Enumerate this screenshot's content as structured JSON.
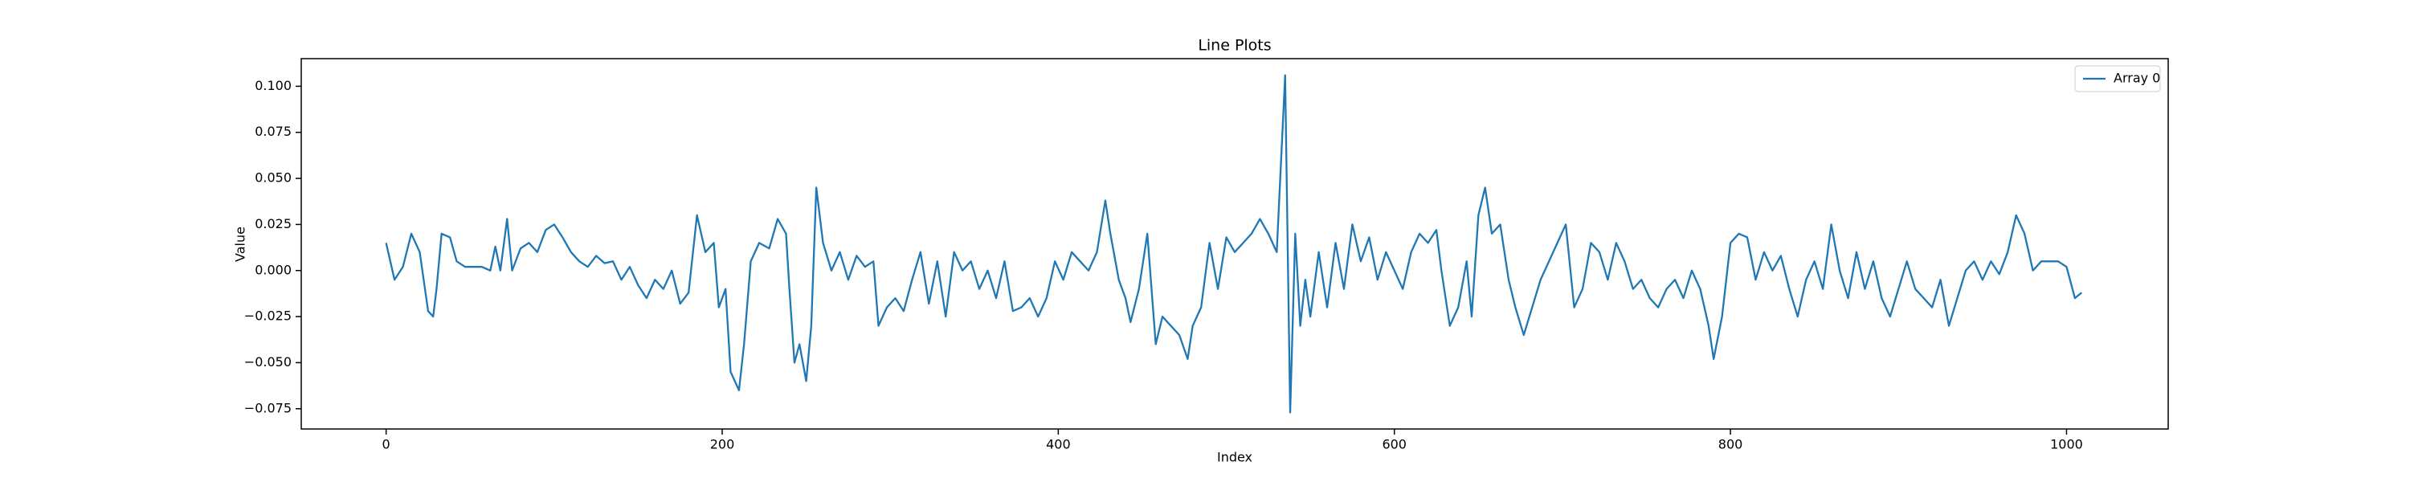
{
  "chart_data": {
    "type": "line",
    "title": "Line Plots",
    "xlabel": "Index",
    "ylabel": "Value",
    "x": [
      0,
      5,
      10,
      15,
      20,
      25,
      28,
      30,
      33,
      38,
      42,
      47,
      52,
      57,
      62,
      65,
      68,
      72,
      75,
      80,
      85,
      90,
      95,
      100,
      105,
      110,
      115,
      120,
      125,
      130,
      135,
      140,
      145,
      150,
      155,
      160,
      165,
      170,
      175,
      180,
      185,
      190,
      195,
      198,
      202,
      205,
      210,
      213,
      217,
      222,
      228,
      233,
      238,
      240,
      243,
      246,
      250,
      253,
      256,
      260,
      265,
      270,
      275,
      280,
      285,
      290,
      293,
      298,
      303,
      308,
      313,
      318,
      323,
      328,
      333,
      338,
      343,
      348,
      353,
      358,
      363,
      368,
      373,
      378,
      383,
      388,
      393,
      398,
      403,
      408,
      413,
      418,
      423,
      428,
      431,
      436,
      440,
      443,
      448,
      453,
      458,
      462,
      467,
      472,
      477,
      480,
      485,
      490,
      495,
      500,
      505,
      510,
      515,
      520,
      525,
      530,
      535,
      538,
      541,
      544,
      547,
      550,
      555,
      560,
      565,
      570,
      575,
      580,
      585,
      590,
      595,
      600,
      605,
      610,
      615,
      620,
      625,
      628,
      633,
      638,
      643,
      646,
      650,
      654,
      658,
      663,
      668,
      672,
      677,
      682,
      687,
      692,
      697,
      702,
      707,
      712,
      717,
      722,
      727,
      732,
      737,
      742,
      747,
      752,
      757,
      762,
      767,
      772,
      777,
      782,
      787,
      790,
      795,
      800,
      805,
      810,
      815,
      820,
      825,
      830,
      835,
      840,
      845,
      850,
      855,
      860,
      865,
      870,
      875,
      880,
      885,
      890,
      895,
      900,
      905,
      910,
      915,
      920,
      925,
      930,
      935,
      940,
      945,
      950,
      955,
      960,
      965,
      970,
      975,
      980,
      985,
      990,
      995,
      1000,
      1005,
      1009
    ],
    "series": [
      {
        "name": "Array 0",
        "color": "#1f77b4",
        "values": [
          0.015,
          -0.005,
          0.002,
          0.02,
          0.01,
          -0.022,
          -0.025,
          -0.01,
          0.02,
          0.018,
          0.005,
          0.002,
          0.002,
          0.002,
          0.0,
          0.013,
          0.0,
          0.028,
          0.0,
          0.012,
          0.015,
          0.01,
          0.022,
          0.025,
          0.018,
          0.01,
          0.005,
          0.002,
          0.008,
          0.004,
          0.005,
          -0.005,
          0.002,
          -0.008,
          -0.015,
          -0.005,
          -0.01,
          0.0,
          -0.018,
          -0.012,
          0.03,
          0.01,
          0.015,
          -0.02,
          -0.01,
          -0.055,
          -0.065,
          -0.04,
          0.005,
          0.015,
          0.012,
          0.028,
          0.02,
          -0.01,
          -0.05,
          -0.04,
          -0.06,
          -0.03,
          0.045,
          0.015,
          0.0,
          0.01,
          -0.005,
          0.008,
          0.002,
          0.005,
          -0.03,
          -0.02,
          -0.015,
          -0.022,
          -0.005,
          0.01,
          -0.018,
          0.005,
          -0.025,
          0.01,
          0.0,
          0.005,
          -0.01,
          0.0,
          -0.015,
          0.005,
          -0.022,
          -0.02,
          -0.015,
          -0.025,
          -0.015,
          0.005,
          -0.005,
          0.01,
          0.005,
          0.0,
          0.01,
          0.038,
          0.02,
          -0.005,
          -0.015,
          -0.028,
          -0.01,
          0.02,
          -0.04,
          -0.025,
          -0.03,
          -0.035,
          -0.048,
          -0.03,
          -0.02,
          0.015,
          -0.01,
          0.018,
          0.01,
          0.015,
          0.02,
          0.028,
          0.02,
          0.01,
          0.106,
          -0.077,
          0.02,
          -0.03,
          -0.005,
          -0.025,
          0.01,
          -0.02,
          0.015,
          -0.01,
          0.025,
          0.005,
          0.018,
          -0.005,
          0.01,
          0.0,
          -0.01,
          0.01,
          0.02,
          0.015,
          0.022,
          0.0,
          -0.03,
          -0.02,
          0.005,
          -0.025,
          0.03,
          0.045,
          0.02,
          0.025,
          -0.005,
          -0.02,
          -0.035,
          -0.02,
          -0.005,
          0.005,
          0.015,
          0.025,
          -0.02,
          -0.01,
          0.015,
          0.01,
          -0.005,
          0.015,
          0.005,
          -0.01,
          -0.005,
          -0.015,
          -0.02,
          -0.01,
          -0.005,
          -0.015,
          0.0,
          -0.01,
          -0.03,
          -0.048,
          -0.025,
          0.015,
          0.02,
          0.018,
          -0.005,
          0.01,
          0.0,
          0.008,
          -0.01,
          -0.025,
          -0.005,
          0.005,
          -0.01,
          0.025,
          0.0,
          -0.015,
          0.01,
          -0.01,
          0.005,
          -0.015,
          -0.025,
          -0.01,
          0.005,
          -0.01,
          -0.015,
          -0.02,
          -0.005,
          -0.03,
          -0.015,
          0.0,
          0.005,
          -0.005,
          0.005,
          -0.002,
          0.01,
          0.03,
          0.02,
          0.0,
          0.005,
          0.005,
          0.005,
          0.002,
          -0.015,
          -0.012
        ]
      }
    ],
    "xlim": [
      -50.5,
      1060.5
    ],
    "ylim": [
      -0.086,
      0.115
    ],
    "xticks": [
      0,
      200,
      400,
      600,
      800,
      1000
    ],
    "yticks": [
      {
        "value": -0.075,
        "label": "−0.075"
      },
      {
        "value": -0.05,
        "label": "−0.050"
      },
      {
        "value": -0.025,
        "label": "−0.025"
      },
      {
        "value": 0,
        "label": "0.000"
      },
      {
        "value": 0.025,
        "label": "0.025"
      },
      {
        "value": 0.05,
        "label": "0.050"
      },
      {
        "value": 0.075,
        "label": "0.075"
      },
      {
        "value": 0.1,
        "label": "0.100"
      }
    ],
    "grid": false,
    "legend": "upper right"
  }
}
